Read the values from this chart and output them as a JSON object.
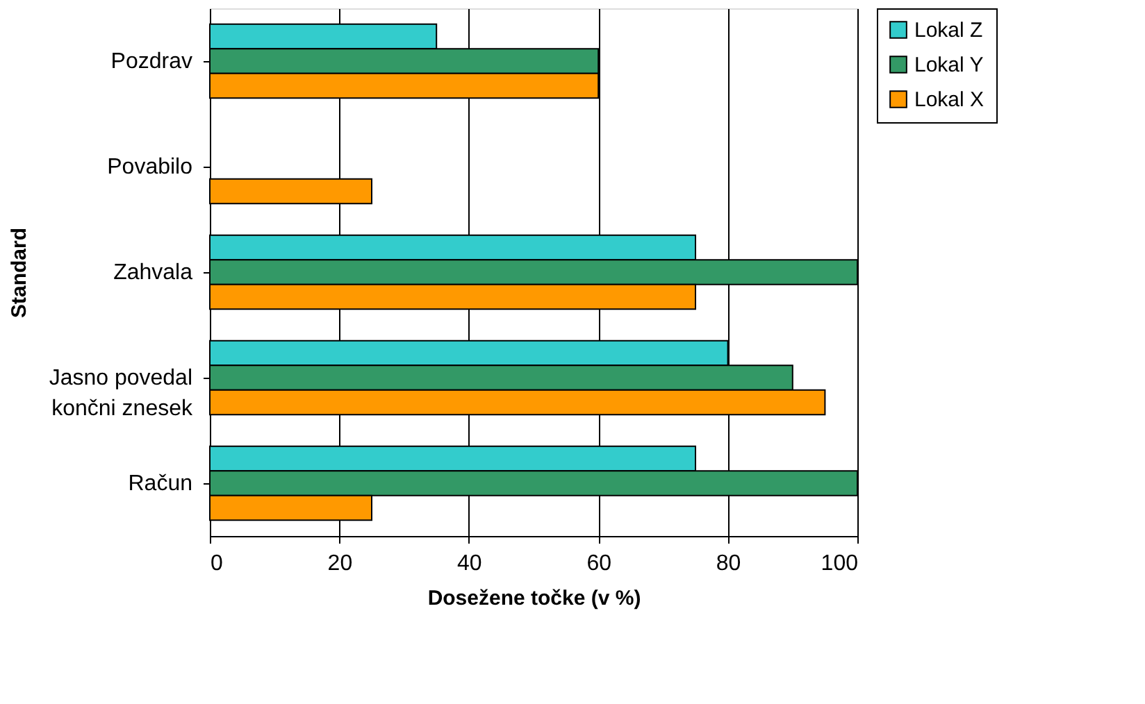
{
  "chart_data": {
    "type": "bar",
    "orientation": "horizontal",
    "xlabel": "Dosežene točke (v %)",
    "ylabel": "Standard",
    "categories": [
      "Pozdrav",
      "Povabilo",
      "Zahvala",
      "Jasno povedal končni znesek",
      "Račun"
    ],
    "series": [
      {
        "name": "Lokal Z",
        "color": "#33cccc",
        "values": [
          35,
          null,
          75,
          80,
          75
        ]
      },
      {
        "name": "Lokal Y",
        "color": "#339966",
        "values": [
          60,
          null,
          100,
          90,
          100
        ]
      },
      {
        "name": "Lokal X",
        "color": "#ff9900",
        "values": [
          60,
          25,
          75,
          95,
          25
        ]
      }
    ],
    "xlim": [
      0,
      100
    ],
    "xticks": [
      0,
      20,
      40,
      60,
      80,
      100
    ],
    "grid": "x",
    "legend": "right"
  }
}
